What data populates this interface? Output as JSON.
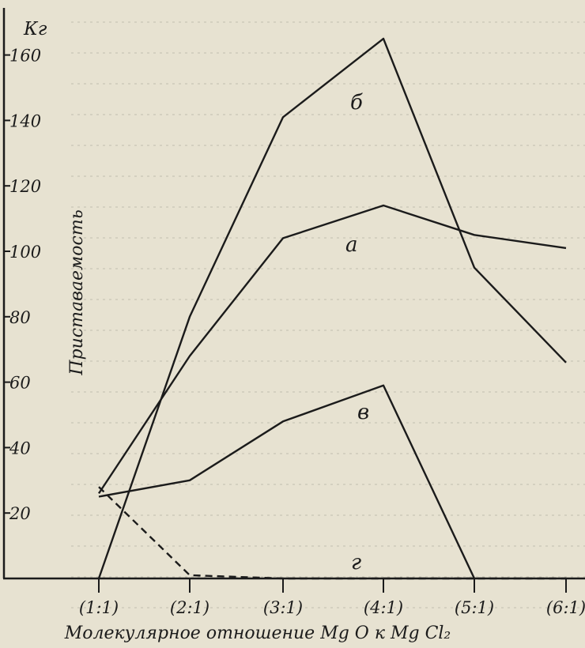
{
  "chart_data": {
    "type": "line",
    "yunit": "Кг",
    "ylabel": "Приставаемость",
    "xlabel": "Молекулярное отношение Mg O к Mg Cl₂",
    "categories": [
      "(1:1)",
      "(2:1)",
      "(3:1)",
      "(4:1)",
      "(5:1)",
      "(6:1)"
    ],
    "yticks": [
      20,
      40,
      60,
      80,
      100,
      120,
      140,
      160
    ],
    "ylim": [
      0,
      170
    ],
    "series": [
      {
        "name": "а",
        "dashed": false,
        "x": [
          1,
          2,
          3,
          4,
          5,
          6
        ],
        "y": [
          26,
          68,
          104,
          114,
          105,
          101
        ]
      },
      {
        "name": "б",
        "dashed": false,
        "x": [
          1,
          2,
          3,
          4,
          5,
          6
        ],
        "y": [
          0,
          80,
          141,
          165,
          95,
          66
        ]
      },
      {
        "name": "в",
        "dashed": false,
        "x": [
          1,
          2,
          3,
          4,
          5
        ],
        "y": [
          25,
          30,
          48,
          59,
          0
        ]
      },
      {
        "name": "г",
        "dashed": true,
        "x": [
          1,
          2,
          3,
          4,
          5,
          6
        ],
        "y": [
          28,
          1,
          0,
          0,
          0,
          0
        ]
      }
    ],
    "colors": {
      "line": "#1b1b1b",
      "paper": "#e7e2d1",
      "bleed_text": "#7d7a70"
    },
    "grid": false
  }
}
